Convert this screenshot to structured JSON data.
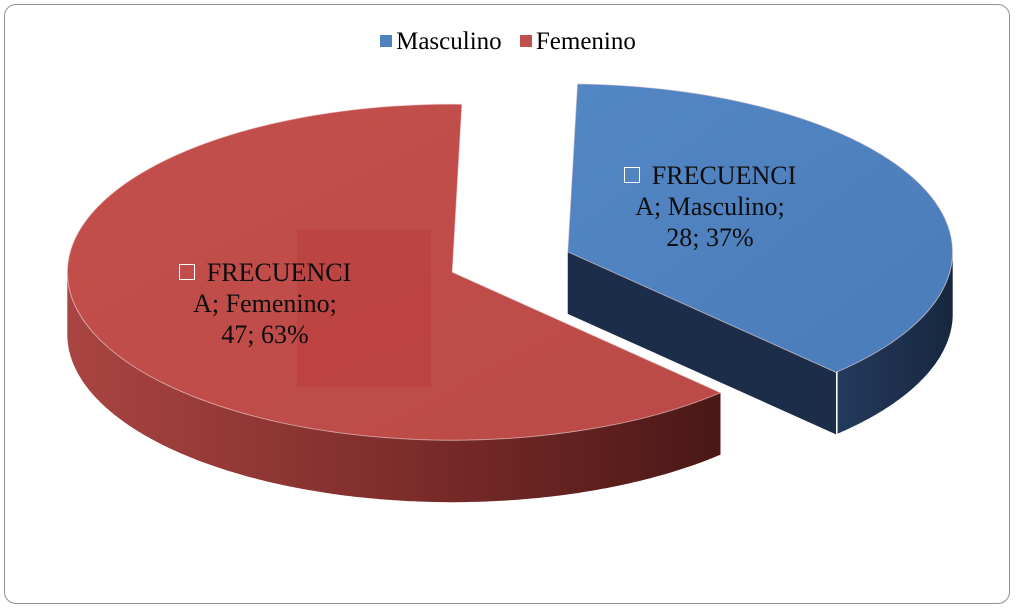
{
  "chart_data": {
    "type": "pie",
    "title": "",
    "legend_position": "top",
    "series": [
      {
        "name": "FRECUENCIA",
        "slices": [
          {
            "label": "Masculino",
            "value": 28,
            "percent": "37%",
            "color": "#4f81bd",
            "side_color": "#1f3250"
          },
          {
            "label": "Femenino",
            "value": 47,
            "percent": "63%",
            "color": "#c0504d",
            "side_color": "#5a1d1c"
          }
        ]
      }
    ],
    "legend": [
      "Masculino",
      "Femenino"
    ],
    "data_labels": [
      {
        "lines": [
          "FRECUENCI",
          "A; Masculino;",
          "28; 37%"
        ]
      },
      {
        "lines": [
          "FRECUENCI",
          "A; Femenino;",
          "47; 63%"
        ]
      }
    ]
  }
}
